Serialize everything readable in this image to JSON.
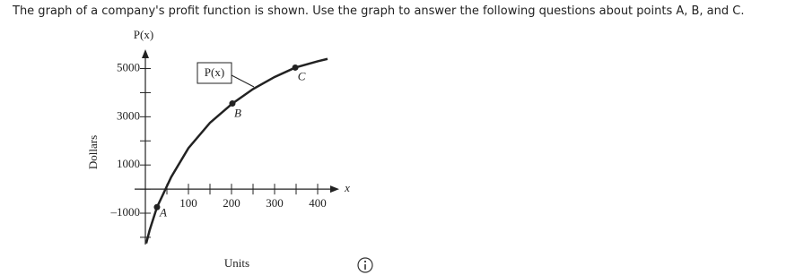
{
  "question": "The graph of a company's profit function is shown. Use the graph to answer the following questions about points A, B, and C.",
  "chart_data": {
    "type": "line",
    "y_axis_label": "P(x)",
    "x_axis_symbol": "x",
    "y_title": "Dollars",
    "x_title": "Units",
    "curve_label": "P(x)",
    "x": [
      2,
      10,
      27,
      60,
      100,
      150,
      202,
      250,
      300,
      348,
      400,
      423
    ],
    "values": [
      -2250,
      -1700,
      -750,
      500,
      1700,
      2750,
      3550,
      4150,
      4650,
      5040,
      5300,
      5400
    ],
    "color": "#222222",
    "points": [
      {
        "label": "A",
        "x": 27,
        "y": -750
      },
      {
        "label": "B",
        "x": 202,
        "y": 3550
      },
      {
        "label": "C",
        "x": 348,
        "y": 5040
      }
    ],
    "xlim": [
      -25,
      450
    ],
    "ylim": [
      -2300,
      5800
    ],
    "xticks": [
      100,
      200,
      300,
      400
    ],
    "xminor": [
      50,
      150,
      250,
      350
    ],
    "yticks": [
      {
        "value": -1000,
        "label": "–1000"
      },
      1000,
      3000,
      5000
    ],
    "yminor": [
      -2000,
      0,
      2000,
      4000
    ]
  }
}
